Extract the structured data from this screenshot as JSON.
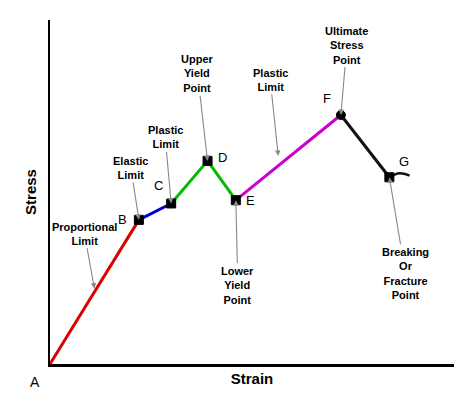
{
  "chart_data": {
    "type": "line",
    "xlabel": "Strain",
    "ylabel": "Stress",
    "xlim": [
      0.0,
      1.0
    ],
    "ylim": [
      0.0,
      1.05
    ],
    "xticks": [],
    "yticks": [],
    "tick_labels": false,
    "grid": false,
    "series": [
      {
        "type": "line",
        "x": [
          0.0,
          0.22,
          0.3,
          0.39,
          0.46,
          0.72,
          0.84
        ],
        "values": [
          0.0,
          0.44,
          0.49,
          0.62,
          0.5,
          0.76,
          0.57
        ],
        "colors": [
          "#dd0000",
          "#0000cc",
          "#00bb00",
          "#00bb00",
          "#cc00cc",
          "#111111"
        ],
        "labels": [
          "A",
          "B",
          "C",
          "D",
          "E",
          "F",
          "G"
        ]
      },
      {
        "type": "line",
        "x": [
          0.84,
          0.865,
          0.89
        ],
        "values": [
          0.57,
          0.582,
          0.575
        ],
        "color": "#111111"
      },
      {
        "type": "scatter",
        "x": [
          0.22,
          0.3,
          0.39,
          0.46,
          0.84
        ],
        "values": [
          0.44,
          0.49,
          0.62,
          0.5,
          0.57
        ],
        "marker": "square",
        "color": "#000000"
      },
      {
        "type": "scatter",
        "x": [
          0.72
        ],
        "values": [
          0.76
        ],
        "marker": "circle",
        "color": "#000000"
      }
    ],
    "annotations": [
      {
        "text": "Proportional\nLimit",
        "x": 0.11,
        "y": 0.23
      },
      {
        "text": "Elastic\nLimit",
        "x": 0.22,
        "y": 0.44
      },
      {
        "text": "Plastic\nLimit",
        "x": 0.3,
        "y": 0.49
      },
      {
        "text": "Upper\nYield\nPoint",
        "x": 0.39,
        "y": 0.62
      },
      {
        "text": "Plastic\nLimit",
        "x": 0.565,
        "y": 0.635
      },
      {
        "text": "Ultimate\nStress\nPoint",
        "x": 0.72,
        "y": 0.76
      },
      {
        "text": "Lower\nYield\nPoint",
        "x": 0.46,
        "y": 0.5
      },
      {
        "text": "Breaking\nOr\nFracture\nPoint",
        "x": 0.84,
        "y": 0.57
      }
    ]
  }
}
